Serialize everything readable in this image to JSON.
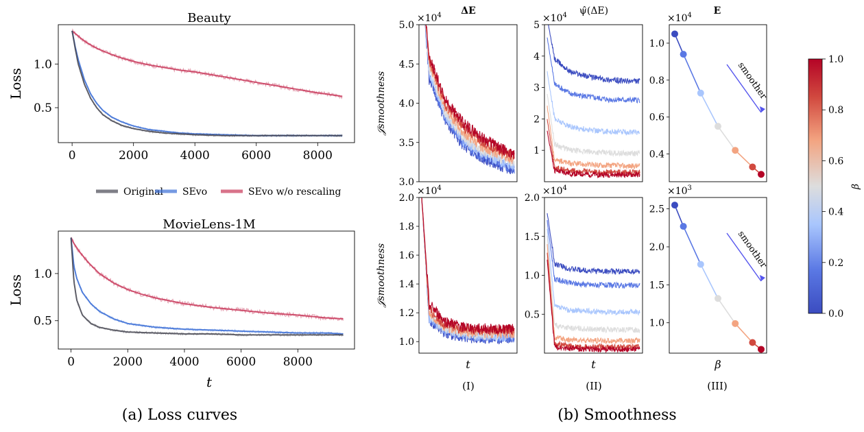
{
  "chart_data": [
    {
      "type": "line",
      "title": "Beauty",
      "ylabel": "Loss",
      "xlabel": "",
      "xticks": [
        "0",
        "2000",
        "4000",
        "6000",
        "8000"
      ],
      "yticks": [
        "0.5",
        "1.0"
      ],
      "xlim": [
        -450,
        9200
      ],
      "ylim": [
        0.1,
        1.45
      ],
      "grid": false,
      "series": [
        {
          "name": "SEvo w/o rescaling",
          "color": "#c8385a",
          "x": [
            0,
            100,
            300,
            500,
            800,
            1200,
            1600,
            2000,
            2500,
            3000,
            3500,
            4000,
            4500,
            5000,
            5500,
            6000,
            6500,
            7000,
            7500,
            8000,
            8800
          ],
          "values": [
            1.38,
            1.35,
            1.29,
            1.24,
            1.18,
            1.12,
            1.07,
            1.03,
            0.99,
            0.96,
            0.93,
            0.91,
            0.88,
            0.85,
            0.82,
            0.79,
            0.76,
            0.73,
            0.7,
            0.67,
            0.63
          ]
        },
        {
          "name": "SEvo",
          "color": "#3b6fd6",
          "x": [
            0,
            100,
            200,
            400,
            600,
            800,
            1000,
            1300,
            1600,
            2000,
            2500,
            3000,
            3500,
            4000,
            5000,
            6000,
            7000,
            8000,
            8800
          ],
          "values": [
            1.38,
            1.2,
            1.05,
            0.82,
            0.66,
            0.55,
            0.47,
            0.39,
            0.34,
            0.29,
            0.25,
            0.23,
            0.21,
            0.2,
            0.19,
            0.18,
            0.18,
            0.18,
            0.18
          ]
        },
        {
          "name": "Original",
          "color": "#4a4a55",
          "x": [
            0,
            100,
            200,
            400,
            600,
            800,
            1000,
            1300,
            1600,
            2000,
            2500,
            3000,
            3500,
            4000,
            5000,
            6000,
            7000,
            8000,
            8800
          ],
          "values": [
            1.38,
            1.18,
            1.0,
            0.77,
            0.61,
            0.5,
            0.42,
            0.35,
            0.3,
            0.26,
            0.23,
            0.21,
            0.2,
            0.19,
            0.18,
            0.18,
            0.18,
            0.18,
            0.18
          ]
        }
      ]
    },
    {
      "type": "line",
      "title": "MovieLens-1M",
      "ylabel": "Loss",
      "xlabel": "t",
      "xticks": [
        "0",
        "2000",
        "4000",
        "6000",
        "8000"
      ],
      "yticks": [
        "0.5",
        "1.0"
      ],
      "xlim": [
        -450,
        10000
      ],
      "ylim": [
        0.2,
        1.45
      ],
      "grid": false,
      "series": [
        {
          "name": "SEvo w/o rescaling",
          "color": "#c8385a",
          "x": [
            0,
            100,
            300,
            600,
            1000,
            1500,
            2000,
            2500,
            3000,
            3500,
            4000,
            5000,
            6000,
            7000,
            8000,
            9000,
            9600
          ],
          "values": [
            1.38,
            1.32,
            1.23,
            1.12,
            1.0,
            0.9,
            0.83,
            0.78,
            0.74,
            0.71,
            0.68,
            0.64,
            0.61,
            0.58,
            0.56,
            0.53,
            0.52
          ]
        },
        {
          "name": "SEvo",
          "color": "#3b6fd6",
          "x": [
            0,
            100,
            200,
            400,
            700,
            1000,
            1500,
            2000,
            3000,
            4000,
            5000,
            6000,
            7000,
            8000,
            9000,
            9600
          ],
          "values": [
            1.38,
            1.08,
            0.95,
            0.8,
            0.68,
            0.6,
            0.52,
            0.47,
            0.43,
            0.41,
            0.4,
            0.39,
            0.38,
            0.37,
            0.37,
            0.36
          ]
        },
        {
          "name": "Original",
          "color": "#4a4a55",
          "x": [
            0,
            100,
            200,
            400,
            700,
            1000,
            1500,
            2000,
            3000,
            4000,
            5000,
            6000,
            7000,
            8000,
            9000,
            9600
          ],
          "values": [
            1.38,
            0.92,
            0.72,
            0.56,
            0.47,
            0.43,
            0.4,
            0.38,
            0.37,
            0.36,
            0.36,
            0.35,
            0.35,
            0.35,
            0.35,
            0.35
          ]
        }
      ]
    },
    {
      "type": "line",
      "title": "ΔE",
      "ylabel": "𝒥smoothness",
      "multiplier": "×10",
      "multiplier_exp": "4",
      "yticks": [
        "3.0",
        "3.5",
        "4.0",
        "4.5",
        "5.0"
      ],
      "ylim": [
        3.0,
        5.0
      ],
      "xlabel": "",
      "beta_values": [
        0.0,
        0.1,
        0.3,
        0.5,
        0.7,
        0.9,
        1.0
      ],
      "series": [
        {
          "values": [
            5.6,
            4.3,
            3.8,
            3.45,
            3.3,
            3.2,
            3.15
          ]
        },
        {
          "values": [
            5.6,
            4.35,
            3.82,
            3.48,
            3.32,
            3.22,
            3.17
          ]
        },
        {
          "values": [
            5.6,
            4.4,
            3.86,
            3.52,
            3.36,
            3.26,
            3.2
          ]
        },
        {
          "values": [
            5.6,
            4.45,
            3.9,
            3.56,
            3.4,
            3.3,
            3.24
          ]
        },
        {
          "values": [
            5.6,
            4.5,
            3.95,
            3.62,
            3.45,
            3.35,
            3.28
          ]
        },
        {
          "values": [
            5.6,
            4.55,
            4.0,
            3.7,
            3.52,
            3.4,
            3.32
          ]
        },
        {
          "values": [
            5.6,
            4.6,
            4.05,
            3.75,
            3.56,
            3.43,
            3.33
          ]
        }
      ]
    },
    {
      "type": "line",
      "title": "ψ̂(ΔE)",
      "multiplier": "×10",
      "multiplier_exp": "4",
      "yticks": [
        "1",
        "2",
        "3",
        "4",
        "5"
      ],
      "ylim": [
        0.0,
        5.0
      ],
      "xlabel": "",
      "beta_values": [
        0.0,
        0.1,
        0.3,
        0.5,
        0.7,
        0.9,
        1.0
      ],
      "series": [
        {
          "values": [
            5.2,
            3.9,
            3.5,
            3.35,
            3.25,
            3.2,
            3.2
          ]
        },
        {
          "values": [
            4.6,
            3.1,
            2.8,
            2.7,
            2.62,
            2.6,
            2.6
          ]
        },
        {
          "values": [
            3.5,
            2.0,
            1.75,
            1.65,
            1.6,
            1.58,
            1.58
          ]
        },
        {
          "values": [
            2.8,
            1.2,
            1.0,
            0.95,
            0.92,
            0.9,
            0.9
          ]
        },
        {
          "values": [
            2.4,
            0.7,
            0.58,
            0.54,
            0.52,
            0.5,
            0.5
          ]
        },
        {
          "values": [
            2.0,
            0.45,
            0.35,
            0.32,
            0.3,
            0.3,
            0.3
          ]
        },
        {
          "values": [
            1.6,
            0.35,
            0.26,
            0.23,
            0.22,
            0.22,
            0.22
          ]
        }
      ]
    },
    {
      "type": "line",
      "title": "E",
      "multiplier": "×10",
      "multiplier_exp": "4",
      "yticks": [
        "0.4",
        "0.6",
        "0.8",
        "1.0"
      ],
      "ylim": [
        0.25,
        1.1
      ],
      "xlabel": "",
      "annotation": "smoother",
      "x": [
        0.0,
        0.1,
        0.3,
        0.5,
        0.7,
        0.9,
        1.0
      ],
      "values": [
        1.05,
        0.94,
        0.73,
        0.55,
        0.42,
        0.33,
        0.29
      ]
    },
    {
      "type": "line",
      "title": "",
      "ylabel": "𝒥smoothness",
      "multiplier": "×10",
      "multiplier_exp": "4",
      "yticks": [
        "1.0",
        "1.2",
        "1.4",
        "1.6",
        "1.8",
        "2.0"
      ],
      "ylim": [
        0.92,
        2.0
      ],
      "xlabel": "t",
      "beta_values": [
        0.0,
        0.1,
        0.3,
        0.5,
        0.7,
        0.9,
        1.0
      ],
      "series": [
        {
          "values": [
            2.0,
            1.15,
            1.06,
            1.03,
            1.02,
            1.02,
            1.02
          ]
        },
        {
          "values": [
            2.0,
            1.16,
            1.07,
            1.04,
            1.03,
            1.03,
            1.03
          ]
        },
        {
          "values": [
            2.0,
            1.17,
            1.08,
            1.05,
            1.04,
            1.04,
            1.04
          ]
        },
        {
          "values": [
            2.0,
            1.18,
            1.09,
            1.06,
            1.05,
            1.05,
            1.05
          ]
        },
        {
          "values": [
            2.0,
            1.2,
            1.1,
            1.07,
            1.06,
            1.06,
            1.06
          ]
        },
        {
          "values": [
            2.0,
            1.22,
            1.12,
            1.09,
            1.08,
            1.08,
            1.08
          ]
        },
        {
          "values": [
            2.0,
            1.26,
            1.14,
            1.1,
            1.09,
            1.09,
            1.09
          ]
        }
      ]
    },
    {
      "type": "line",
      "title": "",
      "multiplier": "×10",
      "multiplier_exp": "4",
      "yticks": [
        "0.5",
        "1.0",
        "1.5",
        "2.0"
      ],
      "ylim": [
        0.0,
        2.0
      ],
      "xlabel": "t",
      "beta_values": [
        0.0,
        0.1,
        0.3,
        0.5,
        0.7,
        0.9,
        1.0
      ],
      "series": [
        {
          "values": [
            1.8,
            1.15,
            1.08,
            1.06,
            1.05,
            1.05,
            1.05
          ]
        },
        {
          "values": [
            1.7,
            0.95,
            0.9,
            0.88,
            0.87,
            0.87,
            0.87
          ]
        },
        {
          "values": [
            1.6,
            0.6,
            0.55,
            0.54,
            0.53,
            0.53,
            0.53
          ]
        },
        {
          "values": [
            1.5,
            0.36,
            0.32,
            0.31,
            0.3,
            0.3,
            0.3
          ]
        },
        {
          "values": [
            1.4,
            0.2,
            0.17,
            0.16,
            0.16,
            0.16,
            0.16
          ]
        },
        {
          "values": [
            1.3,
            0.12,
            0.09,
            0.08,
            0.08,
            0.08,
            0.08
          ]
        },
        {
          "values": [
            1.2,
            0.08,
            0.06,
            0.05,
            0.05,
            0.05,
            0.05
          ]
        }
      ]
    },
    {
      "type": "line",
      "title": "",
      "multiplier": "×10",
      "multiplier_exp": "3",
      "yticks": [
        "1.0",
        "1.5",
        "2.0",
        "2.5"
      ],
      "ylim": [
        0.6,
        2.65
      ],
      "xlabel": "β",
      "annotation": "smoother",
      "x": [
        0.0,
        0.1,
        0.3,
        0.5,
        0.7,
        0.9,
        1.0
      ],
      "values": [
        2.55,
        2.27,
        1.77,
        1.32,
        0.99,
        0.74,
        0.65
      ]
    }
  ],
  "legend": {
    "entries": [
      {
        "label": "Original",
        "color": "#4a4a55"
      },
      {
        "label": "SEvo",
        "color": "#3b6fd6"
      },
      {
        "label": "SEvo w/o rescaling",
        "color": "#c8385a"
      }
    ]
  },
  "colorbar": {
    "label": "β",
    "ticks": [
      "0.0",
      "0.2",
      "0.4",
      "0.6",
      "0.8",
      "1.0"
    ],
    "range": [
      0.0,
      1.0
    ]
  },
  "subfigure_labels": [
    "(I)",
    "(II)",
    "(III)"
  ],
  "captions": {
    "a": "(a) Loss curves",
    "b": "(b) Smoothness"
  },
  "beta_colors": [
    "#3b4cc0",
    "#5a78e4",
    "#a9c6fd",
    "#dddddd",
    "#f3a481",
    "#d1493f",
    "#b40426"
  ]
}
